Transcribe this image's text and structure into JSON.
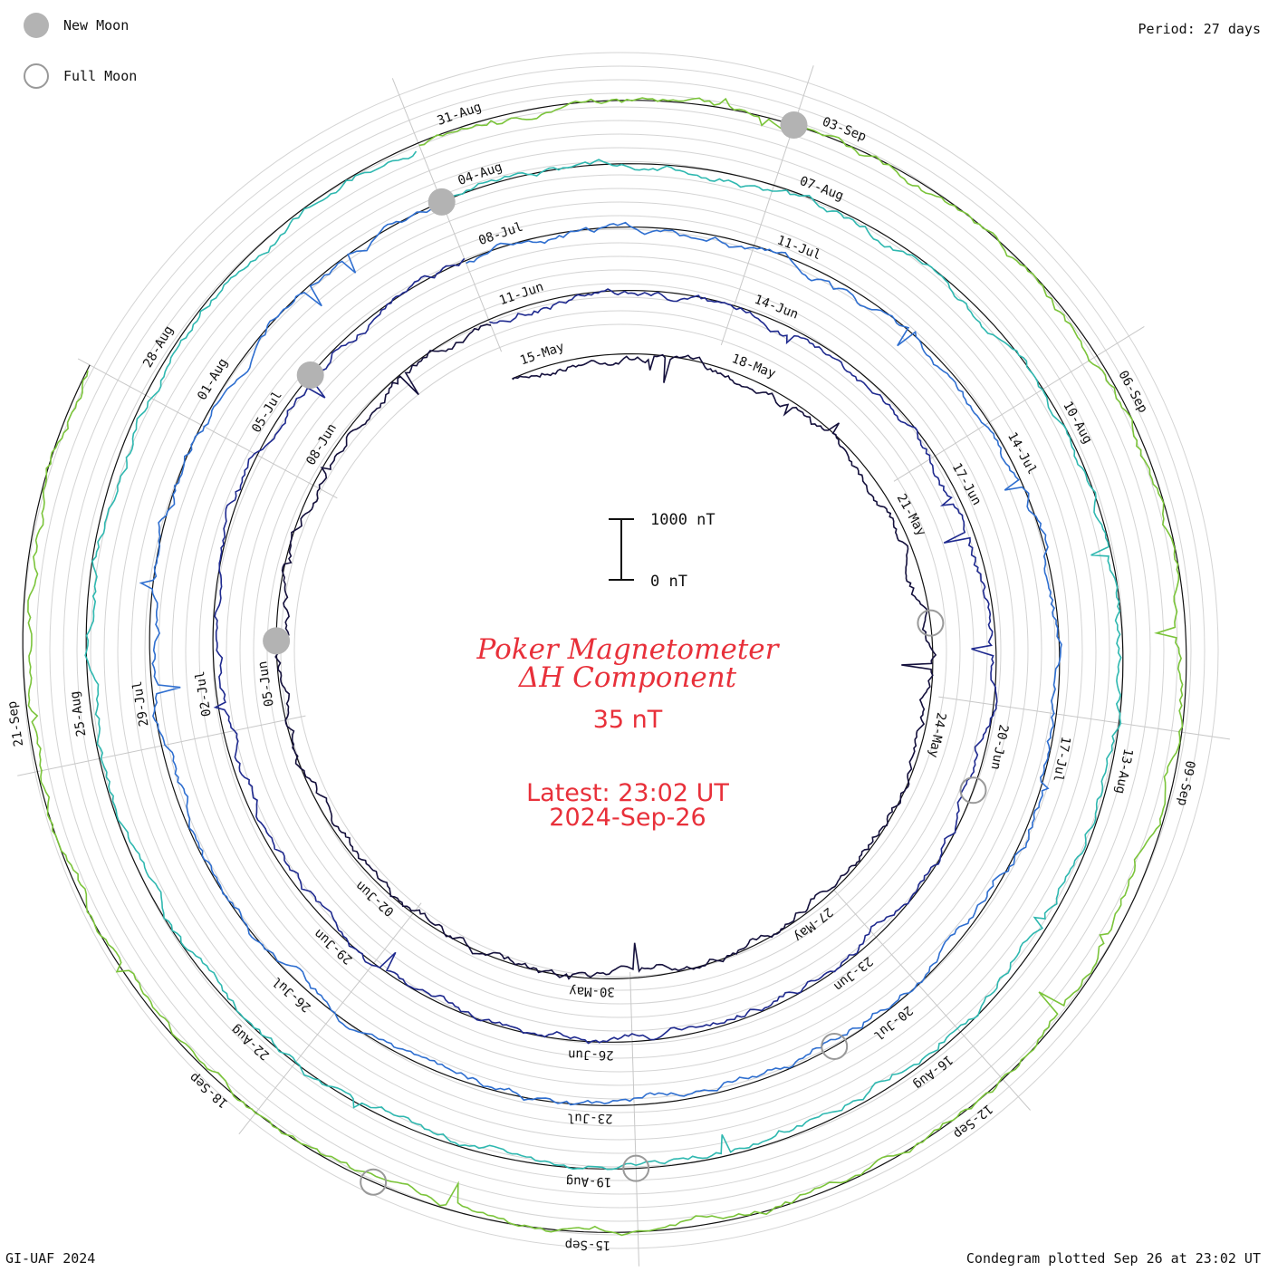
{
  "header": {
    "period": "Period: 27 days"
  },
  "legend": {
    "new_moon": {
      "label": "New Moon",
      "color": "#b3b3b3"
    },
    "full_moon": {
      "label": "Full Moon",
      "color": "#999999"
    }
  },
  "footer": {
    "left": "GI-UAF 2024",
    "right": "Condegram plotted Sep 26 at 23:02 UT"
  },
  "center": {
    "title_line1": "Poker Magnetometer",
    "title_line2": "ΔH Component",
    "value": "35 nT",
    "latest_line1": "Latest: 23:02 UT",
    "latest_line2": "2024-Sep-26",
    "color": "#e8303a"
  },
  "scale": {
    "top_label": "1000 nT",
    "bottom_label": "0 nT"
  },
  "chart_data": {
    "type": "line",
    "period_days": 27,
    "series_colors": [
      "#14103c",
      "#1f2a8f",
      "#2f6fd0",
      "#2fb8b0",
      "#7bc43a",
      "#c8b43a",
      "#c86a20",
      "#b01818"
    ],
    "date_labels": [
      "15-May",
      "18-May",
      "21-May",
      "24-May",
      "27-May",
      "30-May",
      "02-Jun",
      "05-Jun",
      "08-Jun",
      "11-Jun",
      "14-Jun",
      "17-Jun",
      "20-Jun",
      "23-Jun",
      "26-Jun",
      "29-Jun",
      "02-Jul",
      "05-Jul",
      "08-Jul",
      "11-Jul",
      "14-Jul",
      "17-Jul",
      "20-Jul",
      "23-Jul",
      "26-Jul",
      "29-Jul",
      "01-Aug",
      "04-Aug",
      "07-Aug",
      "10-Aug",
      "13-Aug",
      "16-Aug",
      "19-Aug",
      "22-Aug",
      "25-Aug",
      "28-Aug",
      "31-Aug",
      "03-Sep",
      "06-Sep",
      "09-Sep",
      "12-Sep",
      "15-Sep",
      "18-Sep",
      "21-Sep"
    ]
  }
}
